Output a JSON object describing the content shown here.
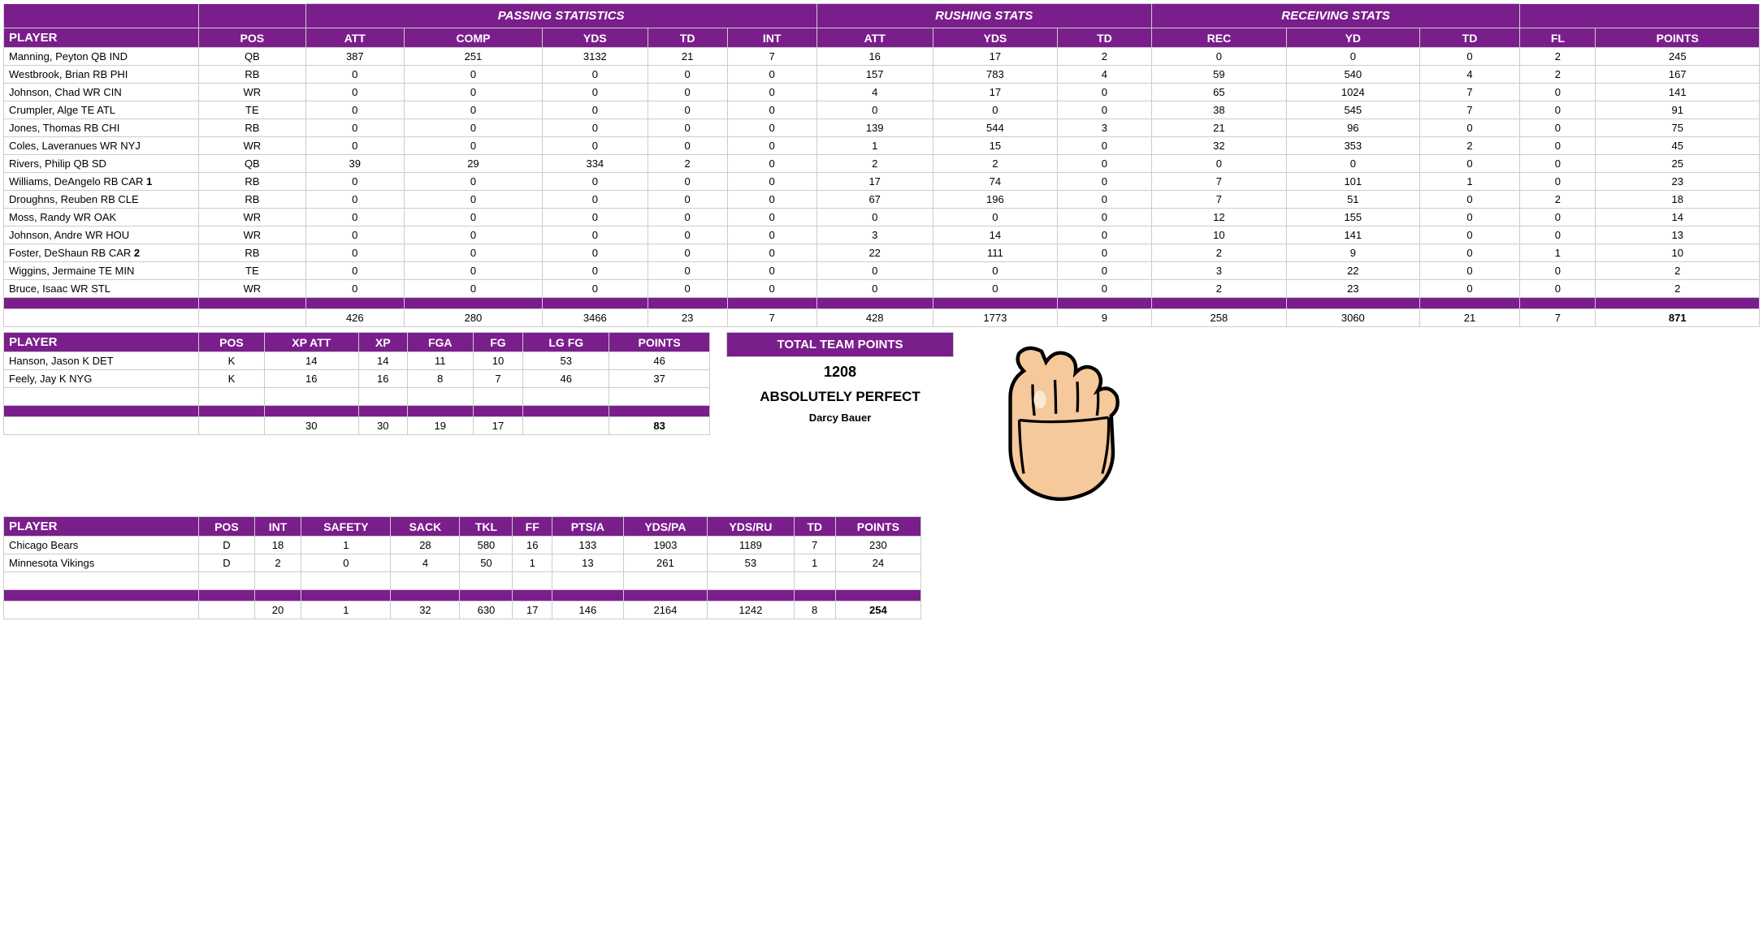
{
  "colors": {
    "header_bg": "#7a1e8c",
    "header_fg": "#ffffff",
    "border": "#cccccc"
  },
  "offense": {
    "groups": {
      "passing": "PASSING STATISTICS",
      "rushing": "RUSHING STATS",
      "receiving": "RECEIVING STATS"
    },
    "columns": {
      "player": "PLAYER",
      "pos": "POS",
      "att": "ATT",
      "comp": "COMP",
      "yds": "YDS",
      "td": "TD",
      "int_": "INT",
      "ratt": "ATT",
      "ryds": "YDS",
      "rtd": "TD",
      "rec": "REC",
      "recyd": "YD",
      "rectd": "TD",
      "fl": "FL",
      "points": "POINTS"
    },
    "rows": [
      {
        "player": "Manning, Peyton QB IND",
        "pos": "QB",
        "att": 387,
        "comp": 251,
        "yds": 3132,
        "td": 21,
        "int_": 7,
        "ratt": 16,
        "ryds": 17,
        "rtd": 2,
        "rec": 0,
        "recyd": 0,
        "rectd": 0,
        "fl": 2,
        "points": 245
      },
      {
        "player": "Westbrook, Brian RB PHI",
        "pos": "RB",
        "att": 0,
        "comp": 0,
        "yds": 0,
        "td": 0,
        "int_": 0,
        "ratt": 157,
        "ryds": 783,
        "rtd": 4,
        "rec": 59,
        "recyd": 540,
        "rectd": 4,
        "fl": 2,
        "points": 167
      },
      {
        "player": "Johnson, Chad WR CIN",
        "pos": "WR",
        "att": 0,
        "comp": 0,
        "yds": 0,
        "td": 0,
        "int_": 0,
        "ratt": 4,
        "ryds": 17,
        "rtd": 0,
        "rec": 65,
        "recyd": 1024,
        "rectd": 7,
        "fl": 0,
        "points": 141
      },
      {
        "player": "Crumpler, Alge TE ATL",
        "pos": "TE",
        "att": 0,
        "comp": 0,
        "yds": 0,
        "td": 0,
        "int_": 0,
        "ratt": 0,
        "ryds": 0,
        "rtd": 0,
        "rec": 38,
        "recyd": 545,
        "rectd": 7,
        "fl": 0,
        "points": 91
      },
      {
        "player": "Jones, Thomas RB CHI",
        "pos": "RB",
        "att": 0,
        "comp": 0,
        "yds": 0,
        "td": 0,
        "int_": 0,
        "ratt": 139,
        "ryds": 544,
        "rtd": 3,
        "rec": 21,
        "recyd": 96,
        "rectd": 0,
        "fl": 0,
        "points": 75
      },
      {
        "player": "Coles, Laveranues WR NYJ",
        "pos": "WR",
        "att": 0,
        "comp": 0,
        "yds": 0,
        "td": 0,
        "int_": 0,
        "ratt": 1,
        "ryds": 15,
        "rtd": 0,
        "rec": 32,
        "recyd": 353,
        "rectd": 2,
        "fl": 0,
        "points": 45
      },
      {
        "player": "Rivers, Philip QB SD",
        "pos": "QB",
        "att": 39,
        "comp": 29,
        "yds": 334,
        "td": 2,
        "int_": 0,
        "ratt": 2,
        "ryds": 2,
        "rtd": 0,
        "rec": 0,
        "recyd": 0,
        "rectd": 0,
        "fl": 0,
        "points": 25
      },
      {
        "player": "Williams, DeAngelo RB CAR",
        "suffix": "1",
        "pos": "RB",
        "att": 0,
        "comp": 0,
        "yds": 0,
        "td": 0,
        "int_": 0,
        "ratt": 17,
        "ryds": 74,
        "rtd": 0,
        "rec": 7,
        "recyd": 101,
        "rectd": 1,
        "fl": 0,
        "points": 23
      },
      {
        "player": "Droughns, Reuben RB CLE",
        "pos": "RB",
        "att": 0,
        "comp": 0,
        "yds": 0,
        "td": 0,
        "int_": 0,
        "ratt": 67,
        "ryds": 196,
        "rtd": 0,
        "rec": 7,
        "recyd": 51,
        "rectd": 0,
        "fl": 2,
        "points": 18
      },
      {
        "player": "Moss, Randy WR OAK",
        "pos": "WR",
        "att": 0,
        "comp": 0,
        "yds": 0,
        "td": 0,
        "int_": 0,
        "ratt": 0,
        "ryds": 0,
        "rtd": 0,
        "rec": 12,
        "recyd": 155,
        "rectd": 0,
        "fl": 0,
        "points": 14
      },
      {
        "player": "Johnson, Andre WR HOU",
        "pos": "WR",
        "att": 0,
        "comp": 0,
        "yds": 0,
        "td": 0,
        "int_": 0,
        "ratt": 3,
        "ryds": 14,
        "rtd": 0,
        "rec": 10,
        "recyd": 141,
        "rectd": 0,
        "fl": 0,
        "points": 13
      },
      {
        "player": "Foster, DeShaun RB CAR",
        "suffix": "2",
        "pos": "RB",
        "att": 0,
        "comp": 0,
        "yds": 0,
        "td": 0,
        "int_": 0,
        "ratt": 22,
        "ryds": 111,
        "rtd": 0,
        "rec": 2,
        "recyd": 9,
        "rectd": 0,
        "fl": 1,
        "points": 10
      },
      {
        "player": "Wiggins, Jermaine TE MIN",
        "pos": "TE",
        "att": 0,
        "comp": 0,
        "yds": 0,
        "td": 0,
        "int_": 0,
        "ratt": 0,
        "ryds": 0,
        "rtd": 0,
        "rec": 3,
        "recyd": 22,
        "rectd": 0,
        "fl": 0,
        "points": 2
      },
      {
        "player": "Bruce, Isaac WR STL",
        "pos": "WR",
        "att": 0,
        "comp": 0,
        "yds": 0,
        "td": 0,
        "int_": 0,
        "ratt": 0,
        "ryds": 0,
        "rtd": 0,
        "rec": 2,
        "recyd": 23,
        "rectd": 0,
        "fl": 0,
        "points": 2
      }
    ],
    "totals": {
      "att": 426,
      "comp": 280,
      "yds": 3466,
      "td": 23,
      "int_": 7,
      "ratt": 428,
      "ryds": 1773,
      "rtd": 9,
      "rec": 258,
      "recyd": 3060,
      "rectd": 21,
      "fl": 7,
      "points": 871
    }
  },
  "kicking": {
    "columns": {
      "player": "PLAYER",
      "pos": "POS",
      "xpatt": "XP ATT",
      "xp": "XP",
      "fga": "FGA",
      "fg": "FG",
      "lgfg": "LG FG",
      "points": "POINTS"
    },
    "rows": [
      {
        "player": "Hanson, Jason K DET",
        "pos": "K",
        "xpatt": 14,
        "xp": 14,
        "fga": 11,
        "fg": 10,
        "lgfg": 53,
        "points": 46
      },
      {
        "player": "Feely, Jay K NYG",
        "pos": "K",
        "xpatt": 16,
        "xp": 16,
        "fga": 8,
        "fg": 7,
        "lgfg": 46,
        "points": 37
      }
    ],
    "totals": {
      "xpatt": 30,
      "xp": 30,
      "fga": 19,
      "fg": 17,
      "lgfg": "",
      "points": 83
    }
  },
  "defense": {
    "columns": {
      "player": "PLAYER",
      "pos": "POS",
      "int_": "INT",
      "safety": "SAFETY",
      "sack": "SACK",
      "tkl": "TKL",
      "ff": "FF",
      "ptsa": "PTS/A",
      "ydspa": "YDS/PA",
      "ydsru": "YDS/RU",
      "td": "TD",
      "points": "POINTS"
    },
    "rows": [
      {
        "player": "Chicago Bears",
        "pos": "D",
        "int_": 18,
        "safety": 1,
        "sack": 28,
        "tkl": 580,
        "ff": 16,
        "ptsa": 133,
        "ydspa": 1903,
        "ydsru": 1189,
        "td": 7,
        "points": 230
      },
      {
        "player": "Minnesota Vikings",
        "pos": "D",
        "int_": 2,
        "safety": 0,
        "sack": 4,
        "tkl": 50,
        "ff": 1,
        "ptsa": 13,
        "ydspa": 261,
        "ydsru": 53,
        "td": 1,
        "points": 24
      }
    ],
    "totals": {
      "int_": 20,
      "safety": 1,
      "sack": 32,
      "tkl": 630,
      "ff": 17,
      "ptsa": 146,
      "ydspa": 2164,
      "ydsru": 1242,
      "td": 8,
      "points": 254
    }
  },
  "team": {
    "header": "TOTAL TEAM POINTS",
    "points": 1208,
    "name": "ABSOLUTELY PERFECT",
    "owner": "Darcy Bauer"
  }
}
